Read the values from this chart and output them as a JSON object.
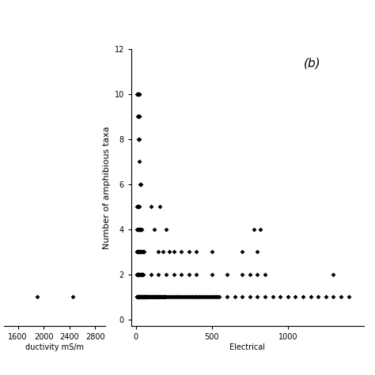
{
  "title_b": "(b)",
  "ylabel": "Number of amphibious taxa",
  "xlabel_b": "Electrical",
  "xlabel_left": "ductivity mS/m",
  "yticks": [
    0,
    2,
    4,
    6,
    8,
    10,
    12
  ],
  "xticks_b": [
    0,
    500,
    1000
  ],
  "xlim_b": [
    -30,
    1500
  ],
  "ylim": [
    -0.3,
    12
  ],
  "xticks_left": [
    1600,
    2000,
    2400,
    2800
  ],
  "xlim_left": [
    1380,
    2950
  ],
  "left_scatter_x": [
    1900,
    2450
  ],
  "left_scatter_y": [
    1,
    1
  ],
  "b_scatter_x": [
    5,
    10,
    15,
    20,
    25,
    10,
    15,
    20,
    25,
    15,
    20,
    25,
    30,
    35,
    5,
    12,
    18,
    25,
    100,
    160,
    5,
    10,
    15,
    20,
    25,
    30,
    35,
    40,
    120,
    200,
    780,
    820,
    5,
    8,
    12,
    16,
    20,
    25,
    30,
    35,
    40,
    45,
    50,
    55,
    150,
    180,
    220,
    250,
    300,
    350,
    400,
    500,
    700,
    800,
    5,
    8,
    10,
    13,
    16,
    19,
    22,
    25,
    28,
    31,
    35,
    38,
    42,
    45,
    48,
    100,
    150,
    200,
    250,
    300,
    350,
    400,
    500,
    600,
    700,
    750,
    800,
    850,
    1300,
    5,
    8,
    11,
    14,
    17,
    20,
    23,
    26,
    29,
    32,
    35,
    38,
    41,
    44,
    47,
    50,
    53,
    56,
    59,
    62,
    65,
    68,
    71,
    74,
    77,
    80,
    85,
    90,
    95,
    100,
    105,
    110,
    115,
    120,
    125,
    130,
    135,
    140,
    145,
    150,
    155,
    160,
    165,
    170,
    175,
    180,
    185,
    190,
    195,
    200,
    210,
    220,
    230,
    240,
    250,
    260,
    270,
    280,
    290,
    300,
    310,
    320,
    330,
    340,
    350,
    360,
    370,
    380,
    390,
    400,
    410,
    420,
    430,
    440,
    450,
    460,
    470,
    480,
    490,
    500,
    510,
    520,
    530,
    540,
    550,
    600,
    650,
    700,
    750,
    800,
    850,
    900,
    950,
    1000,
    1050,
    1100,
    1150,
    1200,
    1250,
    1300,
    1350,
    1400
  ],
  "b_scatter_y": [
    10,
    10,
    10,
    10,
    10,
    9,
    9,
    9,
    9,
    8,
    8,
    7,
    6,
    6,
    5,
    5,
    5,
    5,
    5,
    5,
    4,
    4,
    4,
    4,
    4,
    4,
    4,
    4,
    4,
    4,
    4,
    4,
    3,
    3,
    3,
    3,
    3,
    3,
    3,
    3,
    3,
    3,
    3,
    3,
    3,
    3,
    3,
    3,
    3,
    3,
    3,
    3,
    3,
    3,
    2,
    2,
    2,
    2,
    2,
    2,
    2,
    2,
    2,
    2,
    2,
    2,
    2,
    2,
    2,
    2,
    2,
    2,
    2,
    2,
    2,
    2,
    2,
    2,
    2,
    2,
    2,
    2,
    2,
    1,
    1,
    1,
    1,
    1,
    1,
    1,
    1,
    1,
    1,
    1,
    1,
    1,
    1,
    1,
    1,
    1,
    1,
    1,
    1,
    1,
    1,
    1,
    1,
    1,
    1,
    1,
    1,
    1,
    1,
    1,
    1,
    1,
    1,
    1,
    1,
    1,
    1,
    1,
    1,
    1,
    1,
    1,
    1,
    1,
    1,
    1,
    1,
    1,
    1,
    1,
    1,
    1,
    1,
    1,
    1,
    1,
    1,
    1,
    1,
    1,
    1,
    1,
    1,
    1,
    1,
    1,
    1,
    1,
    1,
    1,
    1,
    1,
    1,
    1,
    1,
    1,
    1,
    1,
    1,
    1,
    1,
    1,
    1,
    1,
    1,
    1,
    1,
    1,
    1,
    1,
    1,
    1,
    1,
    1,
    1,
    1,
    1,
    1,
    1,
    1,
    1
  ],
  "marker": "D",
  "markersize": 3,
  "color": "#000000",
  "background": "#ffffff"
}
